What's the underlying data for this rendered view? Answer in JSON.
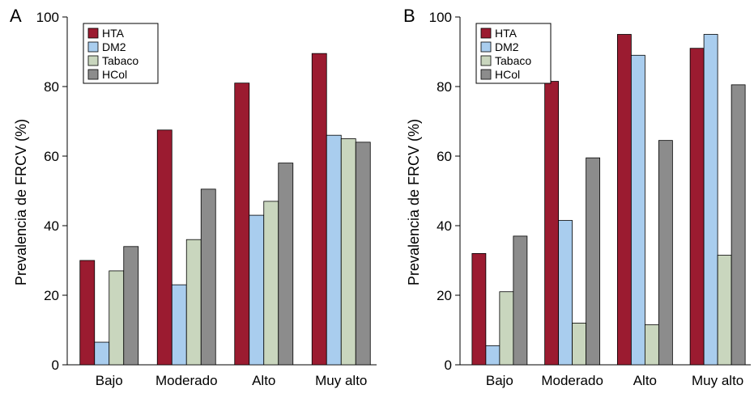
{
  "chart_data": [
    {
      "type": "bar",
      "panel_label": "A",
      "categories": [
        "Bajo",
        "Moderado",
        "Alto",
        "Muy alto"
      ],
      "series": [
        {
          "name": "HTA",
          "color": "#9b1b30",
          "values": [
            30,
            67.5,
            81,
            89.5
          ]
        },
        {
          "name": "DM2",
          "color": "#a9cdee",
          "values": [
            6.5,
            23,
            43,
            66
          ]
        },
        {
          "name": "Tabaco",
          "color": "#c9d6be",
          "values": [
            27,
            36,
            47,
            65
          ]
        },
        {
          "name": "HCol",
          "color": "#8c8c8c",
          "values": [
            34,
            50.5,
            58,
            64
          ]
        }
      ],
      "ylabel": "Prevalencia de FRCV (%)",
      "ylim": [
        0,
        100
      ],
      "yticks": [
        0,
        20,
        40,
        60,
        80,
        100
      ],
      "legend_position": "top-left",
      "grid": false
    },
    {
      "type": "bar",
      "panel_label": "B",
      "categories": [
        "Bajo",
        "Moderado",
        "Alto",
        "Muy alto"
      ],
      "series": [
        {
          "name": "HTA",
          "color": "#9b1b30",
          "values": [
            32,
            81.5,
            95,
            91
          ]
        },
        {
          "name": "DM2",
          "color": "#a9cdee",
          "values": [
            5.5,
            41.5,
            89,
            95
          ]
        },
        {
          "name": "Tabaco",
          "color": "#c9d6be",
          "values": [
            21,
            12,
            11.5,
            31.5
          ]
        },
        {
          "name": "HCol",
          "color": "#8c8c8c",
          "values": [
            37,
            59.5,
            64.5,
            80.5
          ]
        }
      ],
      "ylabel": "Prevalencia de FRCV (%)",
      "ylim": [
        0,
        100
      ],
      "yticks": [
        0,
        20,
        40,
        60,
        80,
        100
      ],
      "legend_position": "top-left",
      "grid": false
    }
  ]
}
